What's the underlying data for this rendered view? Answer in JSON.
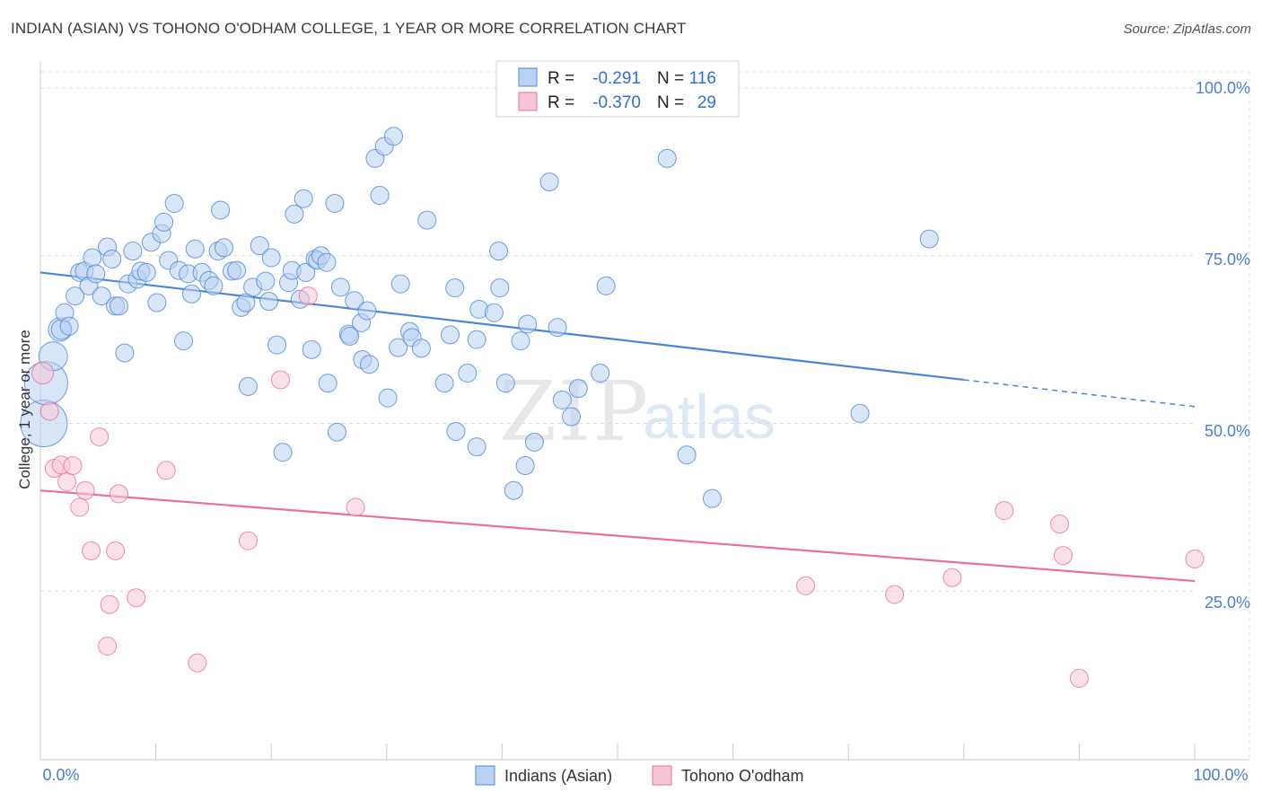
{
  "title": "INDIAN (ASIAN) VS TOHONO O'ODHAM COLLEGE, 1 YEAR OR MORE CORRELATION CHART",
  "source": "Source: ZipAtlas.com",
  "colors": {
    "blue": "#4a86d8",
    "blue_fill": "#b9d2f3",
    "pink": "#e8709a",
    "pink_fill": "#f6c6d6",
    "grid": "#dddddd",
    "tick": "#4a7fd4"
  },
  "legend": {
    "r_label": "R =",
    "n_label": "N =",
    "rows": [
      {
        "r": "-0.291",
        "n": "116"
      },
      {
        "r": "-0.370",
        "n": "29"
      }
    ]
  },
  "watermark": {
    "zip": "ZIP",
    "atlas": "atlas"
  },
  "chart_data": {
    "type": "scatter",
    "title": "INDIAN (ASIAN) VS TOHONO O'ODHAM COLLEGE, 1 YEAR OR MORE CORRELATION CHART",
    "xlabel": "",
    "ylabel": "College, 1 year or more",
    "xlim": [
      0,
      100
    ],
    "ylim": [
      0,
      100
    ],
    "x_tick_labels": [
      "0.0%",
      "100.0%"
    ],
    "y_ticks": [
      25,
      50,
      75,
      100
    ],
    "y_tick_labels": [
      "25.0%",
      "50.0%",
      "75.0%",
      "100.0%"
    ],
    "series": [
      {
        "name": "Indians (Asian)",
        "color": "#4a86d8",
        "trend": {
          "x0": 0,
          "y0": 72.5,
          "x1": 80,
          "y1": 56.5,
          "dash_to_x": 100,
          "dash_to_y": 52.5
        },
        "points": [
          [
            0.3,
            50,
            26
          ],
          [
            0.5,
            56,
            24
          ],
          [
            1.1,
            60,
            16
          ],
          [
            1.7,
            64,
            13
          ],
          [
            1.8,
            64,
            11
          ],
          [
            2.1,
            66.5,
            10
          ],
          [
            2.5,
            64.5,
            10
          ],
          [
            3.0,
            69,
            10
          ],
          [
            3.4,
            72.5,
            10
          ],
          [
            3.8,
            72.7,
            10
          ],
          [
            4.2,
            70.5,
            10
          ],
          [
            4.5,
            74.7,
            10
          ],
          [
            4.8,
            72.3,
            10
          ],
          [
            5.3,
            69,
            10
          ],
          [
            5.8,
            76.3,
            10
          ],
          [
            6.2,
            74.5,
            10
          ],
          [
            6.5,
            67.5,
            10
          ],
          [
            6.8,
            67.5,
            10
          ],
          [
            7.3,
            60.5,
            10
          ],
          [
            7.6,
            70.8,
            10
          ],
          [
            8.0,
            75.7,
            10
          ],
          [
            8.4,
            71.5,
            10
          ],
          [
            8.7,
            72.7,
            10
          ],
          [
            9.2,
            72.5,
            10
          ],
          [
            9.6,
            77,
            10
          ],
          [
            10.1,
            68,
            10
          ],
          [
            10.5,
            78.3,
            10
          ],
          [
            10.7,
            80,
            10
          ],
          [
            11.1,
            74.3,
            10
          ],
          [
            11.6,
            82.8,
            10
          ],
          [
            12.0,
            72.8,
            10
          ],
          [
            12.4,
            62.3,
            10
          ],
          [
            12.8,
            72.3,
            10
          ],
          [
            13.1,
            69.3,
            10
          ],
          [
            13.4,
            76,
            10
          ],
          [
            14.0,
            72.5,
            10
          ],
          [
            14.6,
            71.3,
            10
          ],
          [
            15.0,
            70.5,
            10
          ],
          [
            15.4,
            75.7,
            10
          ],
          [
            15.6,
            81.8,
            10
          ],
          [
            15.9,
            76.2,
            10
          ],
          [
            16.6,
            72.7,
            10
          ],
          [
            17.0,
            72.8,
            10
          ],
          [
            17.4,
            67.3,
            10
          ],
          [
            17.8,
            68,
            10
          ],
          [
            18.0,
            55.5,
            10
          ],
          [
            18.4,
            70.3,
            10
          ],
          [
            19.0,
            76.5,
            10
          ],
          [
            19.5,
            71.2,
            10
          ],
          [
            19.8,
            68.2,
            10
          ],
          [
            20.0,
            74.7,
            10
          ],
          [
            20.5,
            61.7,
            10
          ],
          [
            21.0,
            45.7,
            10
          ],
          [
            21.5,
            71,
            10
          ],
          [
            21.8,
            72.8,
            10
          ],
          [
            22.0,
            81.2,
            10
          ],
          [
            22.5,
            68.5,
            10
          ],
          [
            22.8,
            83.5,
            10
          ],
          [
            23.0,
            72.5,
            10
          ],
          [
            23.5,
            61,
            10
          ],
          [
            23.8,
            74.5,
            10
          ],
          [
            24.0,
            74.3,
            10
          ],
          [
            24.3,
            75,
            10
          ],
          [
            24.8,
            74,
            10
          ],
          [
            24.9,
            56,
            10
          ],
          [
            25.5,
            82.8,
            10
          ],
          [
            25.7,
            48.7,
            10
          ],
          [
            26.0,
            70.3,
            10
          ],
          [
            26.7,
            63.3,
            10
          ],
          [
            26.8,
            63,
            10
          ],
          [
            27.2,
            68.3,
            10
          ],
          [
            27.8,
            65,
            10
          ],
          [
            27.9,
            59.5,
            10
          ],
          [
            28.3,
            66.8,
            10
          ],
          [
            28.5,
            58.8,
            10
          ],
          [
            29.0,
            89.5,
            10
          ],
          [
            29.4,
            84,
            10
          ],
          [
            29.8,
            91.3,
            10
          ],
          [
            30.1,
            53.8,
            10
          ],
          [
            30.6,
            92.8,
            10
          ],
          [
            31.0,
            61.3,
            10
          ],
          [
            31.2,
            70.8,
            10
          ],
          [
            32.0,
            63.7,
            10
          ],
          [
            32.2,
            62.8,
            10
          ],
          [
            33.0,
            61.2,
            10
          ],
          [
            33.5,
            80.3,
            10
          ],
          [
            35.0,
            56,
            10
          ],
          [
            35.5,
            63.2,
            10
          ],
          [
            35.9,
            70.2,
            10
          ],
          [
            36.0,
            48.8,
            10
          ],
          [
            37.0,
            57.5,
            10
          ],
          [
            37.8,
            62.5,
            10
          ],
          [
            37.8,
            46.5,
            10
          ],
          [
            38.0,
            67,
            10
          ],
          [
            39.3,
            66.5,
            10
          ],
          [
            39.7,
            75.7,
            10
          ],
          [
            39.8,
            70.2,
            10
          ],
          [
            40.3,
            56,
            10
          ],
          [
            41.0,
            40,
            10
          ],
          [
            41.6,
            62.3,
            10
          ],
          [
            42.0,
            43.7,
            10
          ],
          [
            42.2,
            64.8,
            10
          ],
          [
            42.8,
            47.2,
            10
          ],
          [
            44.1,
            86,
            10
          ],
          [
            44.8,
            64.3,
            10
          ],
          [
            45.2,
            53.5,
            10
          ],
          [
            46.0,
            51,
            10
          ],
          [
            46.6,
            55.2,
            10
          ],
          [
            48.5,
            57.5,
            10
          ],
          [
            49.0,
            70.5,
            10
          ],
          [
            54.3,
            89.5,
            10
          ],
          [
            56.0,
            45.3,
            10
          ],
          [
            58.2,
            38.8,
            10
          ],
          [
            71.0,
            51.5,
            10
          ],
          [
            77.0,
            77.5,
            10
          ]
        ]
      },
      {
        "name": "Tohono O'odham",
        "color": "#e8709a",
        "trend": {
          "x0": 0,
          "y0": 40,
          "x1": 100,
          "y1": 26.5
        },
        "points": [
          [
            0.2,
            57.5,
            12
          ],
          [
            0.8,
            51.8,
            10
          ],
          [
            1.2,
            43.3,
            10
          ],
          [
            1.8,
            43.8,
            10
          ],
          [
            2.3,
            41.3,
            10
          ],
          [
            2.8,
            43.7,
            10
          ],
          [
            3.4,
            37.5,
            10
          ],
          [
            3.9,
            40,
            10
          ],
          [
            4.4,
            31,
            10
          ],
          [
            5.1,
            48,
            10
          ],
          [
            5.8,
            16.8,
            10
          ],
          [
            6.0,
            23,
            10
          ],
          [
            6.5,
            31,
            10
          ],
          [
            6.8,
            39.5,
            10
          ],
          [
            8.3,
            24,
            10
          ],
          [
            10.9,
            43,
            10
          ],
          [
            13.6,
            14.3,
            10
          ],
          [
            18.0,
            32.5,
            10
          ],
          [
            20.8,
            56.5,
            10
          ],
          [
            23.2,
            69,
            10
          ],
          [
            27.3,
            37.5,
            10
          ],
          [
            66.3,
            25.8,
            10
          ],
          [
            74.0,
            24.5,
            10
          ],
          [
            79.0,
            27,
            10
          ],
          [
            83.5,
            37,
            10
          ],
          [
            88.3,
            35,
            10
          ],
          [
            88.6,
            30.3,
            10
          ],
          [
            90.0,
            12,
            10
          ],
          [
            100.0,
            29.8,
            10
          ]
        ]
      }
    ],
    "legend_position": "top-center"
  }
}
